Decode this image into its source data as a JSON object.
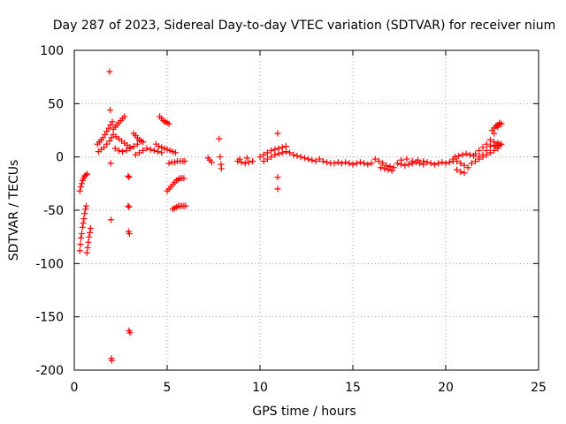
{
  "chart_data": {
    "type": "scatter",
    "title": "Day 287 of 2023, Sidereal Day-to-day VTEC variation (SDTVAR) for receiver nium",
    "xlabel": "GPS time / hours",
    "ylabel": "SDTVAR / TECUs",
    "xlim": [
      0,
      25
    ],
    "ylim": [
      -200,
      100
    ],
    "xticks": [
      0,
      5,
      10,
      15,
      20,
      25
    ],
    "yticks": [
      -200,
      -150,
      -100,
      -50,
      0,
      50,
      100
    ],
    "grid": true,
    "marker": "+",
    "color": "#ff0000",
    "series": [
      {
        "name": "SDTVAR",
        "points": [
          [
            0.3,
            -88
          ],
          [
            0.33,
            -82
          ],
          [
            0.36,
            -76
          ],
          [
            0.4,
            -72
          ],
          [
            0.44,
            -66
          ],
          [
            0.48,
            -62
          ],
          [
            0.52,
            -58
          ],
          [
            0.56,
            -53
          ],
          [
            0.6,
            -49
          ],
          [
            0.64,
            -46
          ],
          [
            0.68,
            -90
          ],
          [
            0.72,
            -85
          ],
          [
            0.76,
            -80
          ],
          [
            0.8,
            -75
          ],
          [
            0.84,
            -71
          ],
          [
            0.88,
            -67
          ],
          [
            0.3,
            -32
          ],
          [
            0.35,
            -28
          ],
          [
            0.4,
            -25
          ],
          [
            0.45,
            -22
          ],
          [
            0.5,
            -20
          ],
          [
            0.55,
            -18
          ],
          [
            0.62,
            -17
          ],
          [
            0.7,
            -16
          ],
          [
            1.25,
            12
          ],
          [
            1.35,
            14
          ],
          [
            1.45,
            16
          ],
          [
            1.55,
            18
          ],
          [
            1.65,
            21
          ],
          [
            1.75,
            24
          ],
          [
            1.85,
            27
          ],
          [
            1.95,
            30
          ],
          [
            2.05,
            33
          ],
          [
            1.3,
            5
          ],
          [
            1.45,
            7
          ],
          [
            1.6,
            9
          ],
          [
            1.75,
            12
          ],
          [
            1.9,
            15
          ],
          [
            2.0,
            18
          ],
          [
            1.9,
            80
          ],
          [
            1.93,
            44
          ],
          [
            1.96,
            -6
          ],
          [
            1.98,
            -59
          ],
          [
            2.0,
            -189
          ],
          [
            2.02,
            -191
          ],
          [
            2.1,
            26
          ],
          [
            2.2,
            28
          ],
          [
            2.3,
            30
          ],
          [
            2.4,
            32
          ],
          [
            2.5,
            34
          ],
          [
            2.6,
            36
          ],
          [
            2.7,
            38
          ],
          [
            2.1,
            21
          ],
          [
            2.25,
            19
          ],
          [
            2.4,
            17
          ],
          [
            2.55,
            15
          ],
          [
            2.7,
            13
          ],
          [
            2.85,
            11
          ],
          [
            3.0,
            9
          ],
          [
            2.2,
            8
          ],
          [
            2.4,
            6
          ],
          [
            2.6,
            5
          ],
          [
            2.8,
            6
          ],
          [
            3.0,
            8
          ],
          [
            3.2,
            10
          ],
          [
            3.4,
            12
          ],
          [
            2.9,
            -18
          ],
          [
            2.95,
            -19
          ],
          [
            2.9,
            -46
          ],
          [
            2.95,
            -47
          ],
          [
            2.92,
            -70
          ],
          [
            2.97,
            -72
          ],
          [
            2.95,
            -163
          ],
          [
            3.0,
            -165
          ],
          [
            3.2,
            22
          ],
          [
            3.3,
            20
          ],
          [
            3.4,
            18
          ],
          [
            3.5,
            16
          ],
          [
            3.6,
            15
          ],
          [
            3.7,
            14
          ],
          [
            3.3,
            2
          ],
          [
            3.5,
            4
          ],
          [
            3.7,
            6
          ],
          [
            3.9,
            8
          ],
          [
            4.1,
            7
          ],
          [
            4.3,
            6
          ],
          [
            4.5,
            5
          ],
          [
            4.7,
            4
          ],
          [
            4.6,
            38
          ],
          [
            4.7,
            36
          ],
          [
            4.8,
            34
          ],
          [
            4.9,
            33
          ],
          [
            5.0,
            32
          ],
          [
            5.1,
            31
          ],
          [
            4.4,
            12
          ],
          [
            4.55,
            10
          ],
          [
            4.7,
            9
          ],
          [
            4.85,
            8
          ],
          [
            5.0,
            7
          ],
          [
            5.15,
            6
          ],
          [
            5.3,
            5
          ],
          [
            5.45,
            4
          ],
          [
            5.0,
            -32
          ],
          [
            5.1,
            -30
          ],
          [
            5.2,
            -28
          ],
          [
            5.3,
            -26
          ],
          [
            5.4,
            -24
          ],
          [
            5.5,
            -22
          ],
          [
            5.6,
            -21
          ],
          [
            5.7,
            -20
          ],
          [
            5.8,
            -20
          ],
          [
            5.9,
            -20
          ],
          [
            5.1,
            -6
          ],
          [
            5.25,
            -5
          ],
          [
            5.4,
            -5
          ],
          [
            5.55,
            -4
          ],
          [
            5.7,
            -4
          ],
          [
            5.85,
            -4
          ],
          [
            5.95,
            -4
          ],
          [
            5.3,
            -49
          ],
          [
            5.4,
            -48
          ],
          [
            5.5,
            -47
          ],
          [
            5.6,
            -46
          ],
          [
            5.7,
            -46
          ],
          [
            5.8,
            -46
          ],
          [
            5.9,
            -46
          ],
          [
            6.0,
            -46
          ],
          [
            7.2,
            -1
          ],
          [
            7.3,
            -3
          ],
          [
            7.4,
            -5
          ],
          [
            7.8,
            17
          ],
          [
            7.85,
            0
          ],
          [
            7.9,
            -7
          ],
          [
            7.92,
            -11
          ],
          [
            8.8,
            -4
          ],
          [
            9.0,
            -5
          ],
          [
            9.2,
            -6
          ],
          [
            9.4,
            -5
          ],
          [
            9.6,
            -4
          ],
          [
            8.9,
            -2
          ],
          [
            9.3,
            -1
          ],
          [
            10.0,
            0
          ],
          [
            10.2,
            2
          ],
          [
            10.4,
            4
          ],
          [
            10.6,
            6
          ],
          [
            10.8,
            7
          ],
          [
            11.0,
            8
          ],
          [
            11.2,
            9
          ],
          [
            11.4,
            10
          ],
          [
            10.2,
            -4
          ],
          [
            10.4,
            -2
          ],
          [
            10.6,
            0
          ],
          [
            10.8,
            2
          ],
          [
            11.0,
            3
          ],
          [
            11.2,
            4
          ],
          [
            11.4,
            5
          ],
          [
            10.95,
            22
          ],
          [
            10.95,
            -19
          ],
          [
            10.95,
            -30
          ],
          [
            11.6,
            4
          ],
          [
            11.8,
            2
          ],
          [
            12.0,
            1
          ],
          [
            12.2,
            0
          ],
          [
            12.4,
            -1
          ],
          [
            12.6,
            -2
          ],
          [
            12.8,
            -3
          ],
          [
            13.0,
            -4
          ],
          [
            13.2,
            -2
          ],
          [
            13.4,
            -4
          ],
          [
            13.6,
            -5
          ],
          [
            13.8,
            -6
          ],
          [
            14.0,
            -6
          ],
          [
            14.2,
            -5
          ],
          [
            14.4,
            -6
          ],
          [
            14.6,
            -5
          ],
          [
            14.8,
            -6
          ],
          [
            15.0,
            -7
          ],
          [
            15.2,
            -6
          ],
          [
            15.4,
            -5
          ],
          [
            15.6,
            -6
          ],
          [
            15.8,
            -7
          ],
          [
            16.0,
            -6
          ],
          [
            16.2,
            -2
          ],
          [
            16.4,
            -4
          ],
          [
            16.6,
            -6
          ],
          [
            16.8,
            -8
          ],
          [
            17.0,
            -9
          ],
          [
            17.2,
            -10
          ],
          [
            16.5,
            -10
          ],
          [
            16.7,
            -11
          ],
          [
            16.9,
            -12
          ],
          [
            17.1,
            -13
          ],
          [
            17.4,
            -6
          ],
          [
            17.6,
            -7
          ],
          [
            17.8,
            -8
          ],
          [
            18.0,
            -7
          ],
          [
            18.2,
            -6
          ],
          [
            18.4,
            -5
          ],
          [
            18.6,
            -6
          ],
          [
            18.8,
            -7
          ],
          [
            17.6,
            -3
          ],
          [
            17.9,
            -2
          ],
          [
            18.2,
            -4
          ],
          [
            18.5,
            -3
          ],
          [
            18.8,
            -4
          ],
          [
            19.0,
            -5
          ],
          [
            19.2,
            -6
          ],
          [
            19.4,
            -7
          ],
          [
            19.6,
            -6
          ],
          [
            19.8,
            -5
          ],
          [
            20.0,
            -6
          ],
          [
            20.2,
            -5
          ],
          [
            20.4,
            -4
          ],
          [
            20.4,
            -2
          ],
          [
            20.6,
            -4
          ],
          [
            20.8,
            -6
          ],
          [
            21.0,
            -8
          ],
          [
            21.2,
            -10
          ],
          [
            20.6,
            -12
          ],
          [
            20.8,
            -14
          ],
          [
            21.0,
            -15
          ],
          [
            20.5,
            0
          ],
          [
            20.7,
            1
          ],
          [
            20.9,
            2
          ],
          [
            21.1,
            3
          ],
          [
            21.3,
            2
          ],
          [
            21.5,
            1
          ],
          [
            21.4,
            -6
          ],
          [
            21.6,
            -4
          ],
          [
            21.8,
            -2
          ],
          [
            22.0,
            0
          ],
          [
            22.2,
            2
          ],
          [
            22.4,
            4
          ],
          [
            22.6,
            6
          ],
          [
            22.8,
            8
          ],
          [
            21.6,
            3
          ],
          [
            21.8,
            6
          ],
          [
            22.0,
            9
          ],
          [
            22.2,
            12
          ],
          [
            22.4,
            16
          ],
          [
            22.6,
            22
          ],
          [
            22.8,
            28
          ],
          [
            22.9,
            31
          ],
          [
            21.8,
            0
          ],
          [
            22.0,
            2
          ],
          [
            22.2,
            6
          ],
          [
            22.4,
            10
          ],
          [
            22.6,
            14
          ],
          [
            22.8,
            13
          ],
          [
            22.9,
            12
          ],
          [
            22.5,
            25
          ],
          [
            22.6,
            27
          ],
          [
            22.7,
            29
          ],
          [
            22.8,
            30
          ],
          [
            22.9,
            32
          ],
          [
            23.0,
            31
          ],
          [
            22.6,
            11
          ],
          [
            22.7,
            10
          ],
          [
            22.8,
            10
          ],
          [
            22.9,
            11
          ],
          [
            23.0,
            12
          ]
        ]
      }
    ]
  }
}
